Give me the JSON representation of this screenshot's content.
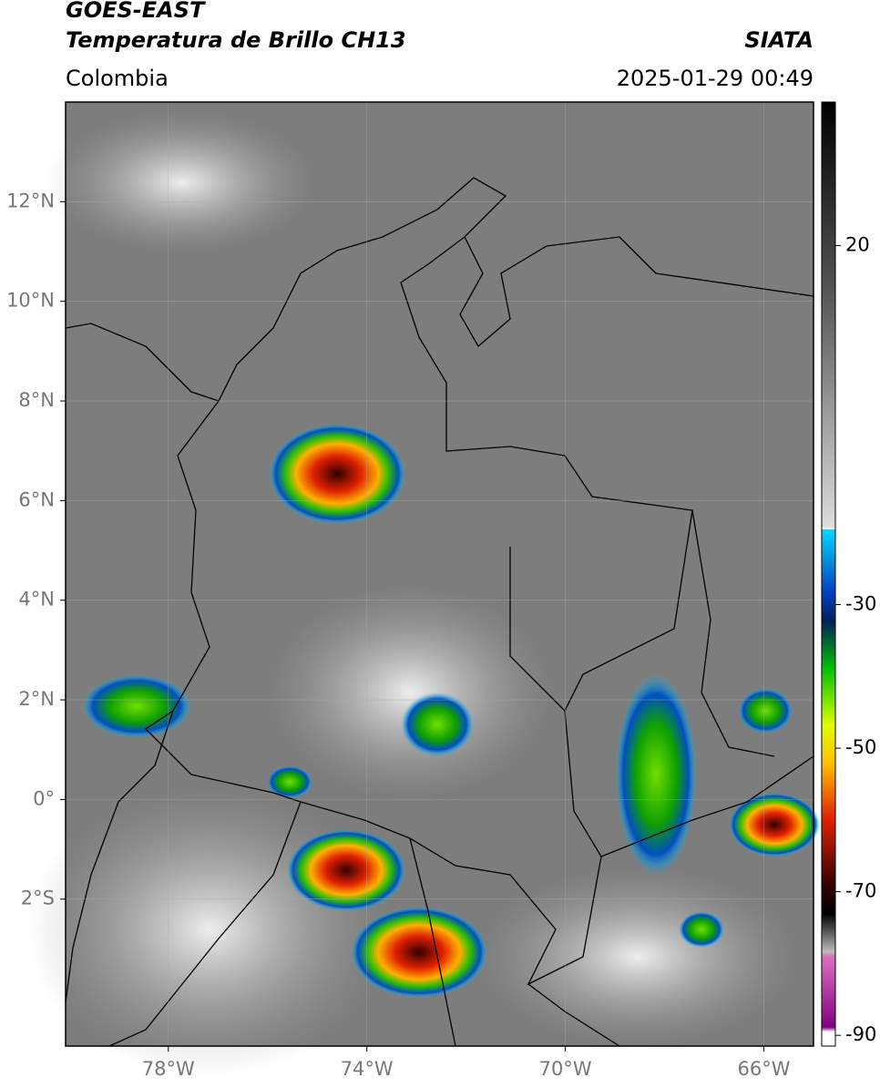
{
  "header": {
    "title_line1": "GOES-EAST",
    "title_line2": "Temperatura de Brillo CH13",
    "source": "SIATA",
    "region": "Colombia",
    "datetime": "2025-01-29 00:49"
  },
  "map": {
    "lon_lim": [
      -80.07,
      -65
    ],
    "lat_lim": [
      -4.95,
      14
    ],
    "lon_ticks": [
      {
        "value": -78,
        "label": "78°W"
      },
      {
        "value": -74,
        "label": "74°W"
      },
      {
        "value": -70,
        "label": "70°W"
      },
      {
        "value": -66,
        "label": "66°W"
      }
    ],
    "lat_ticks": [
      {
        "value": 12,
        "label": "12°N"
      },
      {
        "value": 10,
        "label": "10°N"
      },
      {
        "value": 8,
        "label": "8°N"
      },
      {
        "value": 6,
        "label": "6°N"
      },
      {
        "value": 4,
        "label": "4°N"
      },
      {
        "value": 2,
        "label": "2°N"
      },
      {
        "value": 0,
        "label": "0°"
      },
      {
        "value": -2,
        "label": "2°S"
      }
    ],
    "colorbar": {
      "lim": [
        -91.5,
        40
      ],
      "ticks": [
        20,
        -30,
        -50,
        -70,
        -90
      ]
    }
  }
}
